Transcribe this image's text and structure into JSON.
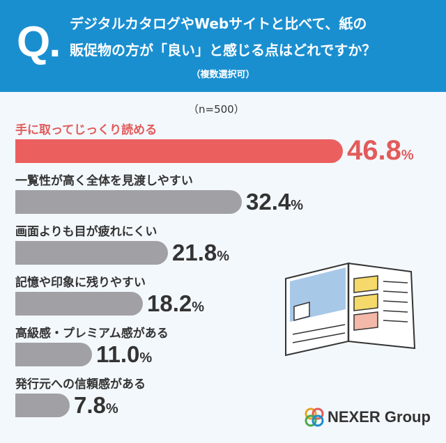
{
  "header": {
    "q_mark": "Q.",
    "question_line1": "デジタルカタログやWebサイトと比べて、紙の",
    "question_line2": "販促物の方が「良い」と感じる点はどれですか？",
    "note": "（複数選択可）"
  },
  "logo": {
    "text": "NEXER Group"
  },
  "chart_data": {
    "type": "bar",
    "orientation": "horizontal",
    "sample_size_label": "（n=500）",
    "unit": "%",
    "categories": [
      "手に取ってじっくり読める",
      "一覧性が高く全体を見渡しやすい",
      "画面よりも目が疲れにくい",
      "記憶や印象に残りやすい",
      "高級感・プレミアム感がある",
      "発行元への信頼感がある"
    ],
    "values": [
      46.8,
      32.4,
      21.8,
      18.2,
      11.0,
      7.8
    ],
    "value_labels": [
      "46.8",
      "32.4",
      "21.8",
      "18.2",
      "11.0",
      "7.8"
    ],
    "highlight_index": 0,
    "colors": {
      "highlight": "#ec5f5f",
      "default": "#a0a0a5",
      "header": "#1a8fd0"
    }
  }
}
